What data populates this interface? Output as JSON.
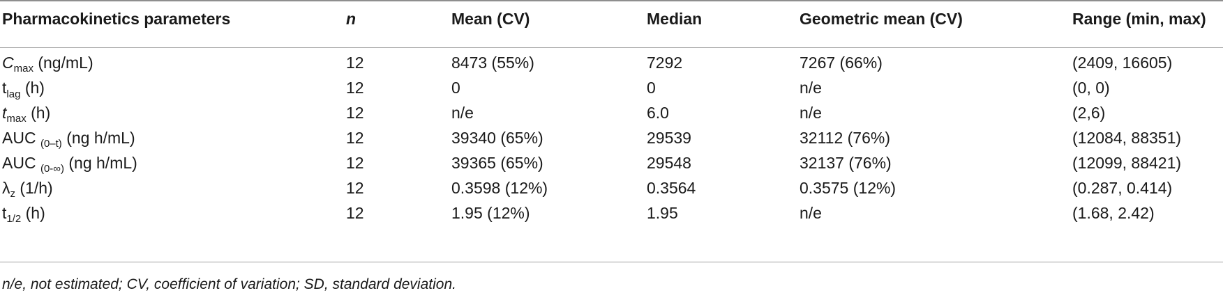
{
  "header": {
    "param": "Pharmacokinetics parameters",
    "n": "n",
    "mean": "Mean (CV)",
    "median": "Median",
    "geo": "Geometric mean (CV)",
    "range": "Range (min, max)"
  },
  "rows": [
    {
      "main": "C",
      "sub": "max",
      "unit": "(ng/mL)",
      "n": "12",
      "mean": "8473 (55%)",
      "median": "7292",
      "geo": "7267 (66%)",
      "range": "(2409, 16605)"
    },
    {
      "main": "t",
      "sub": "lag",
      "unit": "(h)",
      "n": "12",
      "mean": "0",
      "median": "0",
      "geo": "n/e",
      "range": "(0, 0)"
    },
    {
      "main": "t",
      "sub": "max",
      "unit": "(h)",
      "n": "12",
      "mean": "n/e",
      "median": "6.0",
      "geo": "n/e",
      "range": "(2,6)"
    },
    {
      "main": "AUC",
      "sub": "(0–t)",
      "unit": "(ng h/mL)",
      "n": "12",
      "mean": "39340 (65%)",
      "median": "29539",
      "geo": "32112 (76%)",
      "range": "(12084, 88351)"
    },
    {
      "main": "AUC",
      "sub": "(0-∞)",
      "unit": "(ng h/mL)",
      "n": "12",
      "mean": "39365 (65%)",
      "median": "29548",
      "geo": "32137 (76%)",
      "range": "(12099, 88421)"
    },
    {
      "main": "λ",
      "sub": "z",
      "unit": "(1/h)",
      "n": "12",
      "mean": "0.3598 (12%)",
      "median": "0.3564",
      "geo": "0.3575 (12%)",
      "range": "(0.287, 0.414)"
    },
    {
      "main": "t",
      "sub": "1/2",
      "unit": "(h)",
      "n": "12",
      "mean": "1.95 (12%)",
      "median": "1.95",
      "geo": "n/e",
      "range": "(1.68, 2.42)"
    }
  ],
  "footnote": "n/e, not estimated; CV, coefficient of variation; SD, standard deviation."
}
